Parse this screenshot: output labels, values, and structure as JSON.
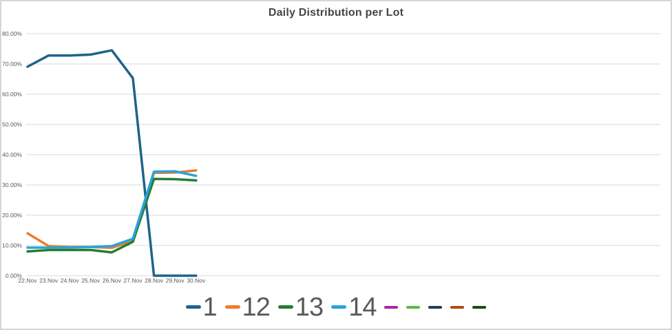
{
  "widget": {
    "title": "Daily Distribution per Lot"
  },
  "chart_data": {
    "type": "line",
    "title": "Daily Distribution per Lot",
    "xlabel": "",
    "ylabel": "",
    "ylim": [
      0,
      80
    ],
    "grid": true,
    "legend_position": "bottom-center",
    "categories": [
      "22.Nov",
      "23.Nov",
      "24.Nov",
      "25.Nov",
      "26.Nov",
      "27.Nov",
      "28.Nov",
      "29.Nov",
      "30.Nov"
    ],
    "y_ticks": [
      {
        "label": "80.00%",
        "value": 80
      },
      {
        "label": "70.00%",
        "value": 70
      },
      {
        "label": "60.00%",
        "value": 60
      },
      {
        "label": "50.00%",
        "value": 50
      },
      {
        "label": "40.00%",
        "value": 40
      },
      {
        "label": "30.00%",
        "value": 30
      },
      {
        "label": "20.00%",
        "value": 20
      },
      {
        "label": "10.00%",
        "value": 10
      },
      {
        "label": "0.00%",
        "value": 0
      }
    ],
    "series": [
      {
        "name": "1",
        "color": "#1F6389",
        "values": [
          69.1,
          72.8,
          72.8,
          73.1,
          74.5,
          65.3,
          0,
          0,
          0
        ]
      },
      {
        "name": "12",
        "color": "#EC7D2D",
        "values": [
          14.0,
          9.8,
          9.5,
          9.5,
          9.2,
          11.5,
          34.0,
          34.1,
          34.8
        ]
      },
      {
        "name": "13",
        "color": "#267D2E",
        "values": [
          8.0,
          8.5,
          8.5,
          8.5,
          7.7,
          11.2,
          32.0,
          31.9,
          31.5
        ]
      },
      {
        "name": "14",
        "color": "#29A3DC",
        "values": [
          9.3,
          9.3,
          9.3,
          9.5,
          9.8,
          12.2,
          34.4,
          34.5,
          33.0
        ]
      },
      {
        "name": "",
        "color": "#A42A9E",
        "values": []
      },
      {
        "name": "",
        "color": "#5CB946",
        "values": []
      },
      {
        "name": "",
        "color": "#1E3E5C",
        "values": []
      },
      {
        "name": "",
        "color": "#AF4B1E",
        "values": []
      },
      {
        "name": "",
        "color": "#1C4A1F",
        "values": []
      }
    ]
  }
}
